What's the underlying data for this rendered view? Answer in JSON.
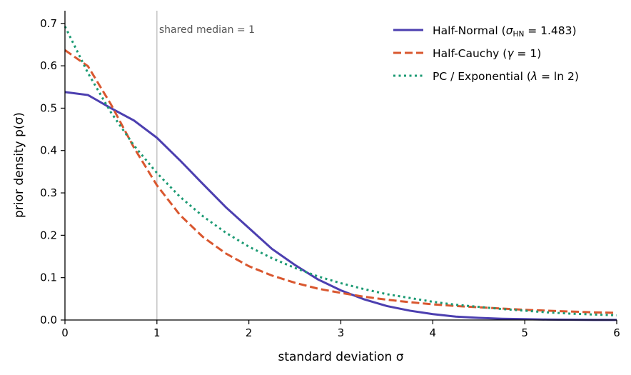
{
  "chart_data": {
    "type": "line",
    "title": "",
    "xlabel": "standard deviation σ",
    "ylabel": "prior density p(σ)",
    "xlim": [
      0,
      6
    ],
    "ylim": [
      0,
      0.73
    ],
    "xticks": [
      0,
      1,
      2,
      3,
      4,
      5,
      6
    ],
    "xtick_labels": [
      "0",
      "1",
      "2",
      "3",
      "4",
      "5",
      "6"
    ],
    "yticks": [
      0.0,
      0.1,
      0.2,
      0.3,
      0.4,
      0.5,
      0.6,
      0.7
    ],
    "ytick_labels": [
      "0.0",
      "0.1",
      "0.2",
      "0.3",
      "0.4",
      "0.5",
      "0.6",
      "0.7"
    ],
    "grid": false,
    "legend_position": "top-right",
    "annotation": {
      "x": 1,
      "text": "shared median = 1",
      "color": "#bbbbbb"
    },
    "x": [
      0,
      0.25,
      0.5,
      0.75,
      1,
      1.25,
      1.5,
      1.75,
      2,
      2.25,
      2.5,
      2.75,
      3,
      3.25,
      3.5,
      3.75,
      4,
      4.25,
      4.5,
      4.75,
      5,
      5.25,
      5.5,
      5.75,
      6
    ],
    "series": [
      {
        "name": "Half-Normal (σ_HN = 1.483)",
        "label_main": "Half-Normal (",
        "label_sym": "σ",
        "label_sub": "HN",
        "label_rest": " = 1.483)",
        "color": "#4c3fb0",
        "style": "solid",
        "values": [
          0.538,
          0.531,
          0.5,
          0.471,
          0.43,
          0.377,
          0.321,
          0.266,
          0.217,
          0.168,
          0.13,
          0.096,
          0.07,
          0.049,
          0.033,
          0.022,
          0.014,
          0.008,
          0.005,
          0.003,
          0.002,
          0.001,
          0.0006,
          0.0003,
          0.0002
        ]
      },
      {
        "name": "Half-Cauchy (γ = 1)",
        "label_main": "Half-Cauchy (",
        "label_sym": "γ",
        "label_sub": "",
        "label_rest": " = 1)",
        "color": "#d9572f",
        "style": "dashed",
        "values": [
          0.637,
          0.599,
          0.509,
          0.407,
          0.318,
          0.248,
          0.196,
          0.157,
          0.127,
          0.105,
          0.088,
          0.074,
          0.064,
          0.055,
          0.048,
          0.042,
          0.037,
          0.033,
          0.03,
          0.027,
          0.024,
          0.022,
          0.02,
          0.018,
          0.017
        ]
      },
      {
        "name": "PC / Exponential (λ = ln 2)",
        "label_main": "PC / Exponential (",
        "label_sym": "λ",
        "label_sub": "",
        "label_rest": " = ln 2)",
        "color": "#1b9a73",
        "style": "dotted",
        "values": [
          0.693,
          0.583,
          0.49,
          0.412,
          0.347,
          0.291,
          0.245,
          0.206,
          0.173,
          0.146,
          0.123,
          0.103,
          0.087,
          0.073,
          0.061,
          0.052,
          0.043,
          0.036,
          0.031,
          0.026,
          0.022,
          0.018,
          0.015,
          0.013,
          0.011
        ]
      }
    ]
  }
}
